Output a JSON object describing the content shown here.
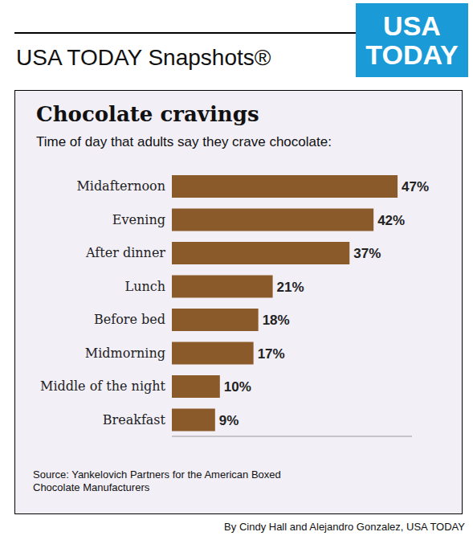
{
  "header": "USA TODAY Snapshots®",
  "logo": "USA TODAY",
  "chart_data": {
    "type": "bar",
    "orientation": "horizontal",
    "title": "Chocolate cravings",
    "subtitle": "Time of day that adults say they crave chocolate:",
    "categories": [
      "Midafternoon",
      "Evening",
      "After dinner",
      "Lunch",
      "Before bed",
      "Midmorning",
      "Middle of the night",
      "Breakfast"
    ],
    "values": [
      47,
      42,
      37,
      21,
      18,
      17,
      10,
      9
    ],
    "value_labels": [
      "47%",
      "42%",
      "37%",
      "21%",
      "18%",
      "17%",
      "10%",
      "9%"
    ],
    "data_labels": true,
    "color": "#8b5a2b",
    "xlim": [
      0,
      50
    ],
    "tick_labels": "y",
    "grid": false
  },
  "source": "Source: Yankelovich Partners for the American Boxed Chocolate Manufacturers",
  "credit": "By Cindy Hall and Alejandro Gonzalez, USA TODAY"
}
